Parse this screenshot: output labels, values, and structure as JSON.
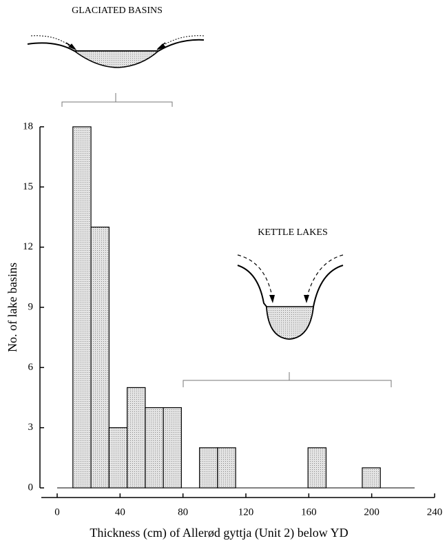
{
  "chart_data": {
    "type": "histogram",
    "title": "GLACIATED BASINS",
    "annotation": "KETTLE LAKES",
    "xlabel": "Thickness  (cm) of Allerød gyttja (Unit 2) below YD",
    "ylabel": "No. of lake basins",
    "bins": [
      10,
      21.5,
      33,
      44.5,
      56,
      67.5,
      79,
      90.5,
      102,
      113.5,
      125,
      136.5,
      148,
      159.5,
      171,
      182.5,
      194,
      205.5
    ],
    "values": [
      18,
      13,
      3,
      5,
      4,
      4,
      0,
      2,
      2,
      0,
      0,
      0,
      0,
      2,
      0,
      0,
      1
    ],
    "color": "#cfcfcf",
    "xlim": [
      0,
      240
    ],
    "xticks": [
      0,
      40,
      80,
      120,
      160,
      200,
      240
    ],
    "ylim": [
      0,
      18
    ],
    "yticks": [
      0,
      3,
      6,
      9,
      12,
      15,
      18
    ]
  }
}
